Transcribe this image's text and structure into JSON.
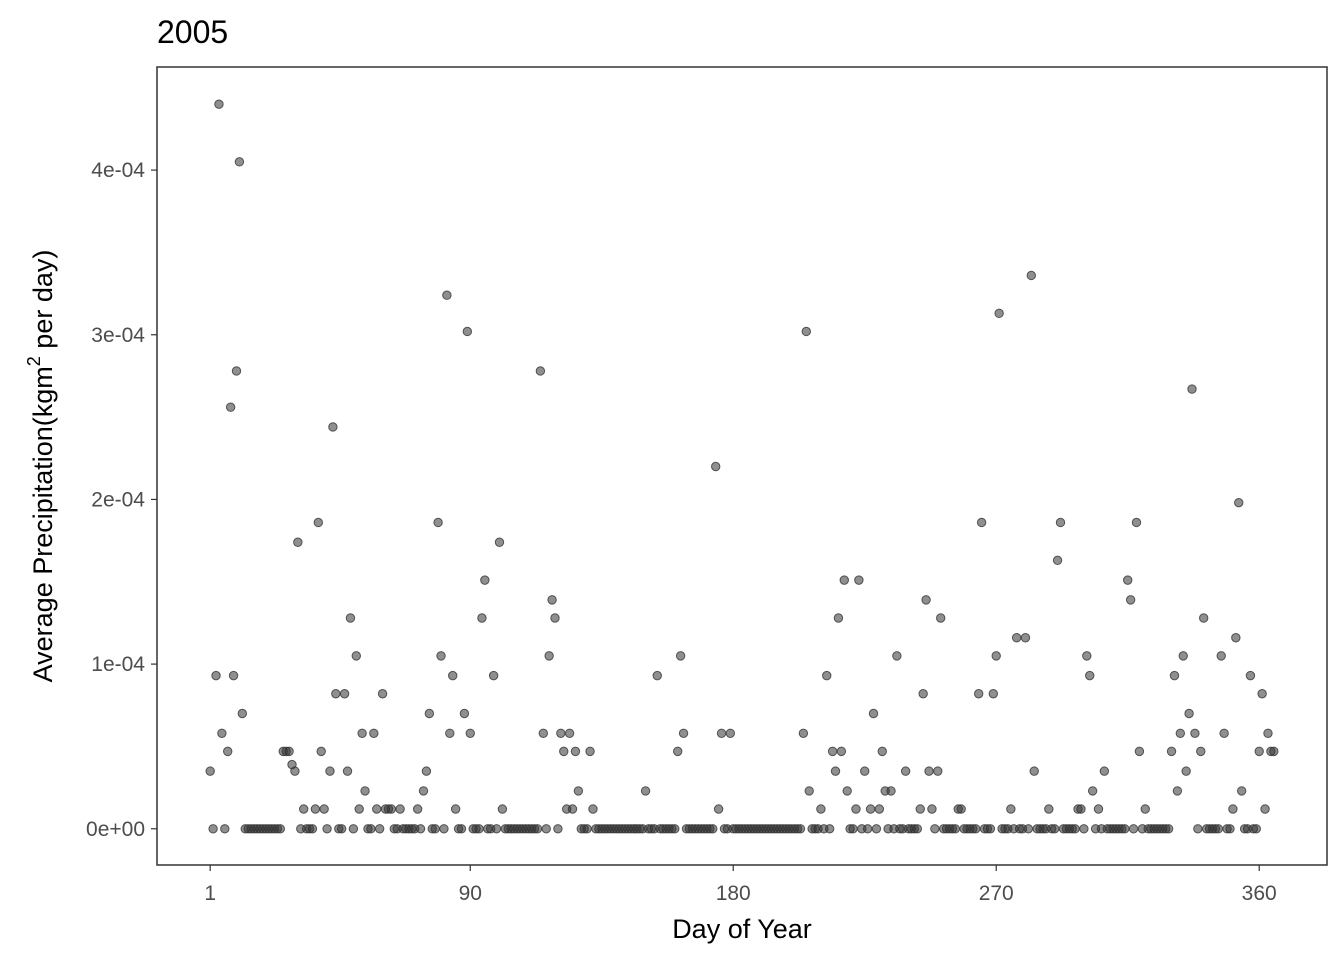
{
  "chart_data": {
    "type": "scatter",
    "title": "2005",
    "x_label": "Day of Year",
    "y_label": "Average Precipitation(kgm",
    "y_label_sup": "2",
    "y_label_end": " per day)",
    "color": "#333333",
    "grid": false,
    "xlim": [
      -17.2,
      383.2
    ],
    "xticks": [
      1,
      90,
      180,
      270,
      360
    ],
    "ylim": [
      -2.2e-05,
      0.0004626
    ],
    "yticks": [
      {
        "value": 0,
        "label": "0e+00"
      },
      {
        "value": 0.0001,
        "label": "1e-04"
      },
      {
        "value": 0.0002,
        "label": "2e-04"
      },
      {
        "value": 0.0003,
        "label": "3e-04"
      },
      {
        "value": 0.0004,
        "label": "4e-04"
      }
    ],
    "x": [
      1,
      2,
      3,
      4,
      5,
      6,
      7,
      8,
      9,
      10,
      11,
      12,
      13,
      14,
      15,
      16,
      17,
      18,
      19,
      20,
      21,
      22,
      23,
      24,
      25,
      26,
      27,
      28,
      29,
      30,
      31,
      32,
      33,
      34,
      35,
      36,
      37,
      38,
      39,
      40,
      41,
      42,
      43,
      44,
      45,
      46,
      47,
      48,
      49,
      50,
      51,
      52,
      53,
      54,
      55,
      56,
      57,
      58,
      59,
      60,
      61,
      62,
      63,
      64,
      65,
      66,
      67,
      68,
      69,
      70,
      71,
      72,
      73,
      74,
      75,
      76,
      77,
      78,
      79,
      80,
      81,
      82,
      83,
      84,
      85,
      86,
      87,
      88,
      89,
      90,
      91,
      92,
      93,
      94,
      95,
      96,
      97,
      98,
      99,
      100,
      101,
      102,
      103,
      104,
      105,
      106,
      107,
      108,
      109,
      110,
      111,
      112,
      113,
      114,
      115,
      116,
      117,
      118,
      119,
      120,
      121,
      122,
      123,
      124,
      125,
      126,
      127,
      128,
      129,
      130,
      131,
      132,
      133,
      134,
      135,
      136,
      137,
      138,
      139,
      140,
      141,
      142,
      143,
      144,
      145,
      146,
      147,
      148,
      149,
      150,
      151,
      152,
      153,
      154,
      155,
      156,
      157,
      158,
      159,
      160,
      161,
      162,
      163,
      164,
      165,
      166,
      167,
      168,
      169,
      170,
      171,
      172,
      173,
      174,
      175,
      176,
      177,
      178,
      179,
      180,
      181,
      182,
      183,
      184,
      185,
      186,
      187,
      188,
      189,
      190,
      191,
      192,
      193,
      194,
      195,
      196,
      197,
      198,
      199,
      200,
      201,
      202,
      203,
      204,
      205,
      206,
      207,
      208,
      209,
      210,
      211,
      212,
      213,
      214,
      215,
      216,
      217,
      218,
      219,
      220,
      221,
      222,
      223,
      224,
      225,
      226,
      227,
      228,
      229,
      230,
      231,
      232,
      233,
      234,
      235,
      236,
      237,
      238,
      239,
      240,
      241,
      242,
      243,
      244,
      245,
      246,
      247,
      248,
      249,
      250,
      251,
      252,
      253,
      254,
      255,
      256,
      257,
      258,
      259,
      260,
      261,
      262,
      263,
      264,
      265,
      266,
      267,
      268,
      269,
      270,
      271,
      272,
      273,
      274,
      275,
      276,
      277,
      278,
      279,
      280,
      281,
      282,
      283,
      284,
      285,
      286,
      287,
      288,
      289,
      290,
      291,
      292,
      293,
      294,
      295,
      296,
      297,
      298,
      299,
      300,
      301,
      302,
      303,
      304,
      305,
      306,
      307,
      308,
      309,
      310,
      311,
      312,
      313,
      314,
      315,
      316,
      317,
      318,
      319,
      320,
      321,
      322,
      323,
      324,
      325,
      326,
      327,
      328,
      329,
      330,
      331,
      332,
      333,
      334,
      335,
      336,
      337,
      338,
      339,
      340,
      341,
      342,
      343,
      344,
      345,
      346,
      347,
      348,
      349,
      350,
      351,
      352,
      353,
      354,
      355,
      356,
      357,
      358,
      359,
      360,
      361,
      362,
      363,
      364,
      365
    ],
    "values": [
      3.5e-05,
      0,
      9.3e-05,
      0.00044,
      5.8e-05,
      0,
      4.7e-05,
      0.000256,
      9.3e-05,
      0.000278,
      0.000405,
      7e-05,
      0,
      0,
      0,
      0,
      0,
      0,
      0,
      0,
      0,
      0,
      0,
      0,
      0,
      4.7e-05,
      4.7e-05,
      4.7e-05,
      3.9e-05,
      3.5e-05,
      0.000174,
      0,
      1.2e-05,
      0,
      0,
      0,
      1.2e-05,
      0.000186,
      4.7e-05,
      1.2e-05,
      0,
      3.5e-05,
      0.000244,
      8.2e-05,
      0,
      0,
      8.2e-05,
      3.5e-05,
      0.000128,
      0,
      0.000105,
      1.2e-05,
      5.8e-05,
      2.3e-05,
      0,
      0,
      5.8e-05,
      1.2e-05,
      0,
      8.2e-05,
      1.2e-05,
      1.2e-05,
      1.2e-05,
      0,
      0,
      1.2e-05,
      0,
      0,
      0,
      0,
      0,
      1.2e-05,
      0,
      2.3e-05,
      3.5e-05,
      7e-05,
      0,
      0,
      0.000186,
      0.000105,
      0,
      0.000324,
      5.8e-05,
      9.3e-05,
      1.2e-05,
      0,
      0,
      7e-05,
      0.000302,
      5.8e-05,
      0,
      0,
      0,
      0.000128,
      0.000151,
      0,
      0,
      9.3e-05,
      0,
      0.000174,
      1.2e-05,
      0,
      0,
      0,
      0,
      0,
      0,
      0,
      0,
      0,
      0,
      0,
      0,
      0.000278,
      5.8e-05,
      0,
      0.000105,
      0.000139,
      0.000128,
      0,
      5.8e-05,
      4.7e-05,
      1.2e-05,
      5.8e-05,
      1.2e-05,
      4.7e-05,
      2.3e-05,
      0,
      0,
      0,
      4.7e-05,
      1.2e-05,
      0,
      0,
      0,
      0,
      0,
      0,
      0,
      0,
      0,
      0,
      0,
      0,
      0,
      0,
      0,
      0,
      0,
      2.3e-05,
      0,
      0,
      0,
      9.3e-05,
      0,
      0,
      0,
      0,
      0,
      0,
      4.7e-05,
      0.000105,
      5.8e-05,
      0,
      0,
      0,
      0,
      0,
      0,
      0,
      0,
      0,
      0,
      0.00022,
      1.2e-05,
      5.8e-05,
      0,
      0,
      5.8e-05,
      0,
      0,
      0,
      0,
      0,
      0,
      0,
      0,
      0,
      0,
      0,
      0,
      0,
      0,
      0,
      0,
      0,
      0,
      0,
      0,
      0,
      0,
      0,
      0,
      5.8e-05,
      0.000302,
      2.3e-05,
      0,
      0,
      0,
      1.2e-05,
      0,
      9.3e-05,
      0,
      4.7e-05,
      3.5e-05,
      0.000128,
      4.7e-05,
      0.000151,
      2.3e-05,
      0,
      0,
      1.2e-05,
      0.000151,
      0,
      3.5e-05,
      0,
      1.2e-05,
      7e-05,
      0,
      1.2e-05,
      4.7e-05,
      2.3e-05,
      0,
      2.3e-05,
      0,
      0.000105,
      0,
      0,
      3.5e-05,
      0,
      0,
      0,
      0,
      1.2e-05,
      8.2e-05,
      0.000139,
      3.5e-05,
      1.2e-05,
      0,
      3.5e-05,
      0.000128,
      0,
      0,
      0,
      0,
      0,
      1.2e-05,
      1.2e-05,
      0,
      0,
      0,
      0,
      0,
      8.2e-05,
      0.000186,
      0,
      0,
      0,
      8.2e-05,
      0.000105,
      0.000313,
      0,
      0,
      0,
      1.2e-05,
      0,
      0.000116,
      0,
      0,
      0.000116,
      0,
      0.000336,
      3.5e-05,
      0,
      0,
      0,
      0,
      1.2e-05,
      0,
      0,
      0.000163,
      0.000186,
      0,
      0,
      0,
      0,
      0,
      1.2e-05,
      1.2e-05,
      0,
      0.000105,
      9.3e-05,
      2.3e-05,
      0,
      1.2e-05,
      0,
      3.5e-05,
      0,
      0,
      0,
      0,
      0,
      0,
      0,
      0.000151,
      0.000139,
      0,
      0.000186,
      4.7e-05,
      0,
      1.2e-05,
      0,
      0,
      0,
      0,
      0,
      0,
      0,
      0,
      4.7e-05,
      9.3e-05,
      2.3e-05,
      5.8e-05,
      0.000105,
      3.5e-05,
      7e-05,
      0.000267,
      5.8e-05,
      0,
      4.7e-05,
      0.000128,
      0,
      0,
      0,
      0,
      0,
      0.000105,
      5.8e-05,
      0,
      0,
      1.2e-05,
      0.000116,
      0.000198,
      2.3e-05,
      0,
      0,
      9.3e-05,
      0,
      0,
      4.7e-05,
      8.2e-05,
      1.2e-05,
      5.8e-05,
      4.7e-05,
      4.7e-05
    ]
  }
}
